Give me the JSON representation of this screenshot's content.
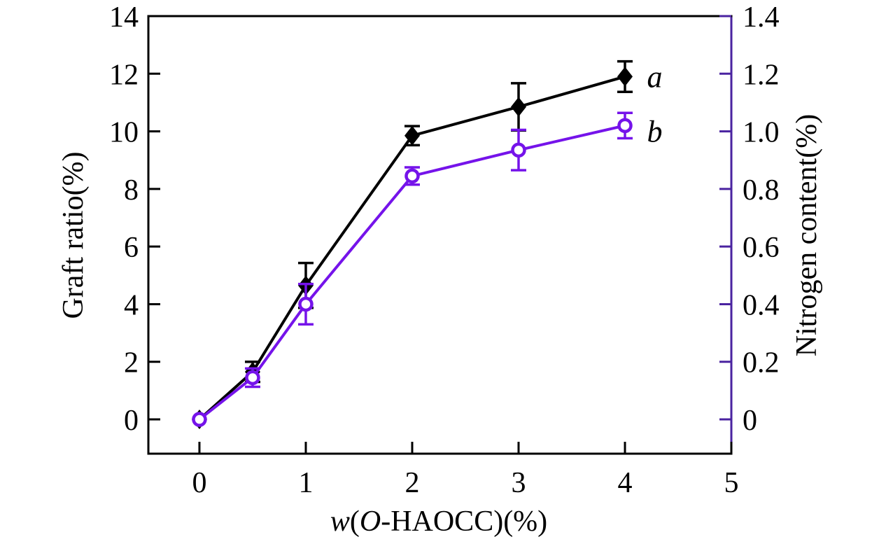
{
  "chart_data": {
    "type": "line",
    "title": "",
    "background": "#ffffff",
    "grid": false,
    "legend_position": "inline labels at right end of each curve",
    "x_axis": {
      "label": "w(O-HAOCC)(%)",
      "label_parts": [
        {
          "text": "w",
          "italic": true
        },
        {
          "text": "(",
          "italic": false
        },
        {
          "text": "O",
          "italic": true
        },
        {
          "text": "-HAOCC)(%)",
          "italic": false
        }
      ],
      "ticks": [
        0,
        1,
        2,
        3,
        4,
        5
      ],
      "range": [
        -0.48,
        5
      ],
      "color": "#000000"
    },
    "y_axis_left": {
      "label": "Graft ratio(%)",
      "ticks": [
        0,
        2,
        4,
        6,
        8,
        10,
        12,
        14
      ],
      "range": [
        -1.19,
        14
      ],
      "color": "#000000"
    },
    "y_axis_right": {
      "label": "Nitrogen content(%)",
      "tick_labels": [
        "0",
        "0.2",
        "0.4",
        "0.6",
        "0.8",
        "1.0",
        "1.2",
        "1.4"
      ],
      "tick_values": [
        0,
        0.2,
        0.4,
        0.6,
        0.8,
        1.0,
        1.2,
        1.4
      ],
      "range": [
        -0.119,
        1.4
      ],
      "color": "#4a23a0"
    },
    "series": [
      {
        "name": "series-a",
        "label": "a",
        "axis": "left",
        "marker": "filled-diamond",
        "color": "#000000",
        "x": [
          0,
          0.5,
          1,
          2,
          3,
          4
        ],
        "y": [
          0,
          1.65,
          4.65,
          9.85,
          10.85,
          11.9
        ],
        "y_err": [
          0,
          0.35,
          0.78,
          0.33,
          0.82,
          0.53
        ],
        "label_pos": {
          "x": 4.28,
          "y": 11.9
        }
      },
      {
        "name": "series-b",
        "label": "b",
        "axis": "right",
        "marker": "open-circle",
        "color": "#7513ea",
        "x": [
          0,
          0.5,
          1,
          2,
          3,
          4
        ],
        "y": [
          0,
          0.145,
          0.4,
          0.845,
          0.935,
          1.02
        ],
        "y_err": [
          0,
          0.032,
          0.07,
          0.03,
          0.07,
          0.044
        ],
        "label_pos": {
          "x": 4.28,
          "y": 1.0
        }
      }
    ]
  }
}
